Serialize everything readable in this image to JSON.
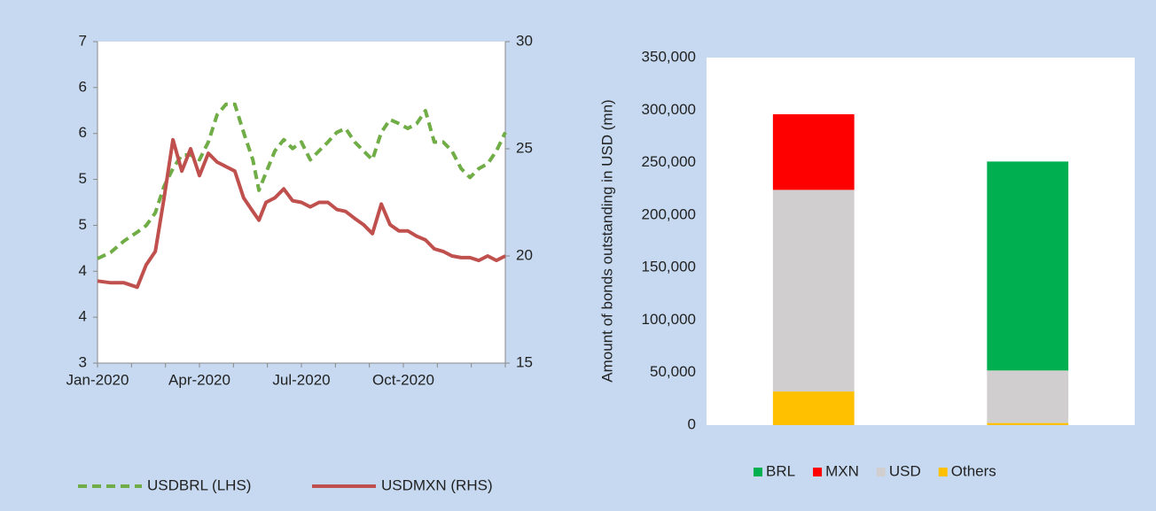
{
  "chart_data": [
    {
      "type": "line",
      "x": [
        0,
        0.39,
        0.78,
        1.17,
        1.43,
        1.7,
        1.96,
        2.22,
        2.48,
        2.74,
        3,
        3.26,
        3.52,
        3.78,
        4.04,
        4.3,
        4.57,
        4.75,
        4.96,
        5.22,
        5.48,
        5.74,
        6,
        6.26,
        6.52,
        6.78,
        7.04,
        7.3,
        7.57,
        7.83,
        8.09,
        8.35,
        8.61,
        8.87,
        9.13,
        9.39,
        9.65,
        9.91,
        10.17,
        10.43,
        10.7,
        10.96,
        11.22,
        11.48,
        11.74,
        12
      ],
      "xlim": [
        0,
        12
      ],
      "xticks": [
        {
          "value": 0,
          "label": "Jan-2020"
        },
        {
          "value": 3,
          "label": "Apr-2020"
        },
        {
          "value": 6,
          "label": "Jul-2020"
        },
        {
          "value": 9,
          "label": "Oct-2020"
        }
      ],
      "xminor_ticks": [
        0,
        1,
        2,
        3,
        4,
        5,
        6,
        7,
        8,
        9,
        10,
        11,
        12
      ],
      "ylim": [
        3,
        7
      ],
      "yticks": [
        {
          "value": 3,
          "label": "3"
        },
        {
          "value": 3.571,
          "label": "4"
        },
        {
          "value": 4.143,
          "label": "4"
        },
        {
          "value": 4.714,
          "label": "5"
        },
        {
          "value": 5.286,
          "label": "5"
        },
        {
          "value": 5.857,
          "label": "6"
        },
        {
          "value": 6.429,
          "label": "6"
        },
        {
          "value": 7,
          "label": "7"
        }
      ],
      "y2lim": [
        15,
        30
      ],
      "y2ticks": [
        15,
        20,
        25,
        30
      ],
      "legend": "bottom",
      "series": [
        {
          "name": "USDBRL (LHS)",
          "color": "#70ad47",
          "dash": "dashed",
          "values": [
            4.3,
            4.38,
            4.52,
            4.63,
            4.71,
            4.87,
            5.2,
            5.42,
            5.59,
            5.59,
            5.53,
            5.75,
            6.09,
            6.22,
            6.22,
            5.87,
            5.53,
            5.15,
            5.37,
            5.64,
            5.78,
            5.67,
            5.75,
            5.53,
            5.64,
            5.75,
            5.87,
            5.92,
            5.75,
            5.64,
            5.53,
            5.87,
            6.03,
            5.98,
            5.92,
            5.98,
            6.14,
            5.75,
            5.75,
            5.64,
            5.42,
            5.31,
            5.42,
            5.48,
            5.64,
            5.87
          ]
        },
        {
          "name": "USDMXN (RHS)",
          "color": "#c0504d",
          "dash": "solid",
          "axis": "y2",
          "values": [
            18.83,
            18.75,
            18.75,
            18.54,
            19.58,
            20.21,
            22.71,
            25.42,
            23.96,
            25.0,
            23.75,
            24.79,
            24.38,
            24.17,
            23.96,
            22.71,
            22.08,
            21.67,
            22.5,
            22.71,
            23.13,
            22.58,
            22.5,
            22.29,
            22.5,
            22.5,
            22.17,
            22.08,
            21.75,
            21.46,
            21.04,
            22.42,
            21.46,
            21.17,
            21.17,
            20.92,
            20.75,
            20.33,
            20.21,
            20.0,
            19.92,
            19.92,
            19.79,
            20.0,
            19.79,
            20.0
          ]
        }
      ]
    },
    {
      "type": "bar",
      "stacked": true,
      "categories": [
        null,
        null
      ],
      "y_label": "Amount of bonds outstanding in USD (mn)",
      "ylim": [
        0,
        350000
      ],
      "yticks": [
        0,
        {
          "value": 50000,
          "label": "50,000"
        },
        {
          "value": 100000,
          "label": "100,000"
        },
        {
          "value": 150000,
          "label": "150,000"
        },
        {
          "value": 200000,
          "label": "200,000"
        },
        {
          "value": 250000,
          "label": "250,000"
        },
        {
          "value": 300000,
          "label": "300,000"
        },
        {
          "value": 350000,
          "label": "350,000"
        }
      ],
      "legend": "bottom",
      "series": [
        {
          "name": "BRL",
          "color": "#00b050",
          "values": [
            0,
            199000
          ]
        },
        {
          "name": "MXN",
          "color": "#ff0000",
          "values": [
            72000,
            0
          ]
        },
        {
          "name": "USD",
          "color": "#d0cece",
          "values": [
            192000,
            50000
          ]
        },
        {
          "name": "Others",
          "color": "#ffc000",
          "values": [
            32000,
            2000
          ]
        }
      ]
    }
  ]
}
